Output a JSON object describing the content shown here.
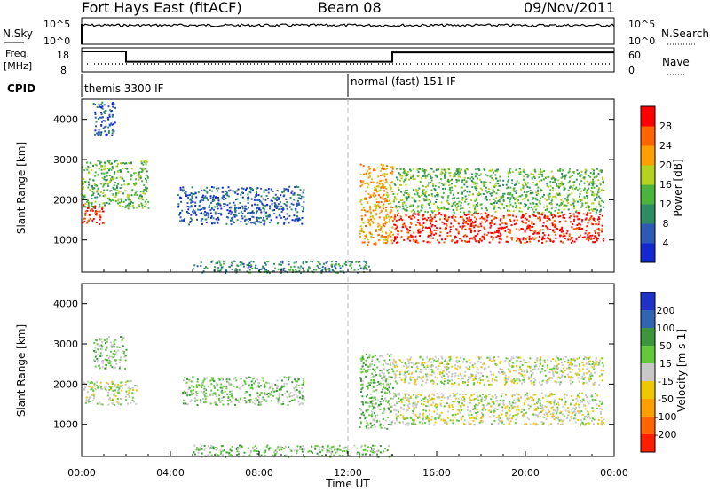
{
  "header": {
    "station": "Fort Hays East (fitACF)",
    "beam": "Beam 08",
    "date": "09/Nov/2011"
  },
  "sky_panel": {
    "left_label": "N.Sky",
    "right_label": "N.Search",
    "left_ticks": [
      "10^5",
      "10^0"
    ],
    "right_ticks": [
      "10^5",
      "10^0"
    ]
  },
  "freq_panel": {
    "left_label_1": "Freq.",
    "left_label_2": "[MHz]",
    "left_ticks": [
      "18",
      "8"
    ],
    "right_label": "Nave",
    "right_ticks": [
      "60",
      "0"
    ],
    "freq_steps": [
      {
        "from_hr": 0.0,
        "to_hr": 2.0,
        "mhz": 17.5
      },
      {
        "from_hr": 2.0,
        "to_hr": 14.0,
        "mhz": 12.0
      },
      {
        "from_hr": 14.0,
        "to_hr": 24.0,
        "mhz": 17.0
      }
    ]
  },
  "cpid": {
    "label": "CPID",
    "segments": [
      {
        "start_hr": 0.0,
        "text": "themis 3300 IF"
      },
      {
        "start_hr": 12.0,
        "text": "normal (fast) 151 IF"
      }
    ]
  },
  "chart_data": [
    {
      "type": "heatmap",
      "name": "Power",
      "xlabel": "Time UT",
      "ylabel": "Slant Range [km]",
      "xlim": [
        0,
        24
      ],
      "ylim": [
        200,
        4500
      ],
      "yticks": [
        1000,
        2000,
        3000,
        4000
      ],
      "colorbar": {
        "label": "Power [dB]",
        "ticks": [
          "4",
          "8",
          "12",
          "16",
          "20",
          "24",
          "28"
        ],
        "colors": [
          "#1428d2",
          "#2d5ab4",
          "#2d8c64",
          "#4bb43c",
          "#b4d21e",
          "#ffa000",
          "#ff6400",
          "#ff0000"
        ]
      },
      "features": [
        {
          "t0": 0.0,
          "t1": 1.0,
          "r0": 1400,
          "r1": 1900,
          "level": 7
        },
        {
          "t0": 0.0,
          "t1": 3.0,
          "r0": 1800,
          "r1": 3000,
          "level": 3
        },
        {
          "t0": 0.5,
          "t1": 1.5,
          "r0": 3600,
          "r1": 4450,
          "level": 1
        },
        {
          "t0": 4.3,
          "t1": 10.0,
          "r0": 1400,
          "r1": 2350,
          "level": 1
        },
        {
          "t0": 12.5,
          "t1": 14.0,
          "r0": 900,
          "r1": 2900,
          "level": 5
        },
        {
          "t0": 14.0,
          "t1": 23.5,
          "r0": 950,
          "r1": 1700,
          "level": 7
        },
        {
          "t0": 14.0,
          "t1": 23.5,
          "r0": 1700,
          "r1": 2800,
          "level": 3
        },
        {
          "t0": 5.0,
          "t1": 13.0,
          "r0": 200,
          "r1": 500,
          "level": 2
        }
      ]
    },
    {
      "type": "heatmap",
      "name": "Velocity",
      "xlabel": "Time UT",
      "ylabel": "Slant Range [km]",
      "xlim": [
        0,
        24
      ],
      "ylim": [
        200,
        4500
      ],
      "yticks": [
        1000,
        2000,
        3000,
        4000
      ],
      "xticks": [
        "00:00",
        "04:00",
        "08:00",
        "12:00",
        "16:00",
        "20:00",
        "00:00"
      ],
      "colorbar": {
        "label": "Velocity [m s-1]",
        "ticks": [
          "200",
          "100",
          "50",
          "15",
          "-15",
          "-50",
          "-100",
          "-200"
        ],
        "colors": [
          "#1e32c8",
          "#3264b4",
          "#3c963c",
          "#64c83c",
          "#c8c8c8",
          "#f0c800",
          "#ffa000",
          "#ff6400",
          "#ff1e00"
        ]
      },
      "features": [
        {
          "t0": 0.0,
          "t1": 2.5,
          "r0": 1500,
          "r1": 2100,
          "level": 4
        },
        {
          "t0": 0.5,
          "t1": 2.0,
          "r0": 2400,
          "r1": 3200,
          "level": 3
        },
        {
          "t0": 4.5,
          "t1": 10.0,
          "r0": 1500,
          "r1": 2200,
          "level": 3
        },
        {
          "t0": 12.5,
          "t1": 14.0,
          "r0": 900,
          "r1": 2800,
          "level": 3
        },
        {
          "t0": 14.0,
          "t1": 23.5,
          "r0": 1000,
          "r1": 1800,
          "level": 4
        },
        {
          "t0": 14.0,
          "t1": 23.5,
          "r0": 2000,
          "r1": 2700,
          "level": 4
        },
        {
          "t0": 5.0,
          "t1": 14.0,
          "r0": 200,
          "r1": 500,
          "level": 3
        }
      ]
    }
  ]
}
